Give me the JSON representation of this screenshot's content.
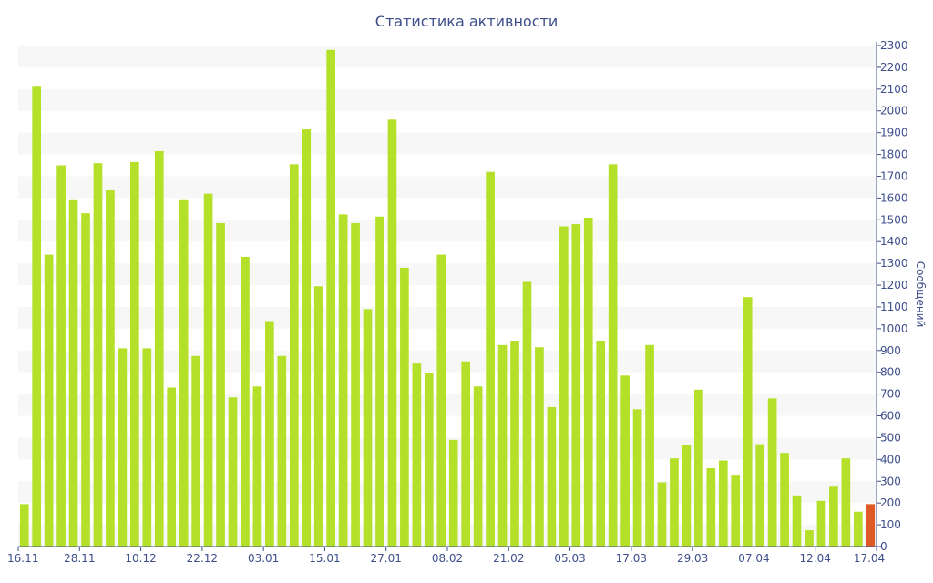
{
  "chart_data": {
    "type": "bar",
    "title": "Статистика активности",
    "xlabel": "",
    "ylabel": "Сообщений",
    "ylim": [
      0,
      2300
    ],
    "y_ticks": [
      0,
      100,
      200,
      300,
      400,
      500,
      600,
      700,
      800,
      900,
      1000,
      1100,
      1200,
      1300,
      1400,
      1500,
      1600,
      1700,
      1800,
      1900,
      2000,
      2100,
      2200,
      2300
    ],
    "x_tick_labels": [
      "16.11",
      "28.11",
      "10.12",
      "22.12",
      "03.01",
      "15.01",
      "27.01",
      "08.02",
      "21.02",
      "05.03",
      "17.03",
      "29.03",
      "07.04",
      "12.04",
      "17.04"
    ],
    "y_axis_side": "right",
    "grid": "alternating horizontal bands",
    "values": [
      195,
      2115,
      1340,
      1750,
      1590,
      1530,
      1760,
      1635,
      910,
      1765,
      910,
      1815,
      730,
      1590,
      875,
      1620,
      1485,
      685,
      1330,
      735,
      1035,
      875,
      1755,
      1915,
      1195,
      2280,
      1525,
      1485,
      1090,
      1515,
      1960,
      1280,
      840,
      795,
      1340,
      490,
      850,
      735,
      1720,
      925,
      945,
      1215,
      915,
      640,
      1470,
      1480,
      1510,
      945,
      1755,
      785,
      630,
      925,
      295,
      405,
      465,
      720,
      360,
      395,
      330,
      1145,
      470,
      680,
      430,
      235,
      75,
      210,
      275,
      405,
      160,
      195
    ],
    "highlight": {
      "index": 69,
      "color": "#e05a28"
    },
    "bar_color": "#b5e02a",
    "axis_color": "#3e4f8c"
  }
}
